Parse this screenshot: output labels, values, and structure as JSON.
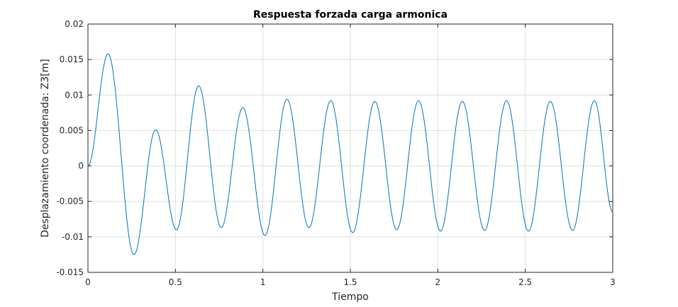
{
  "chart_data": {
    "type": "line",
    "title": "Respuesta forzada carga armonica",
    "xlabel": "Tiempo",
    "ylabel": "Desplazamiento coordenada: Z3[m]",
    "xlim": [
      0,
      3
    ],
    "ylim": [
      -0.015,
      0.02
    ],
    "xticks": [
      0,
      0.5,
      1,
      1.5,
      2,
      2.5,
      3
    ],
    "xtick_labels": [
      "0",
      "0.5",
      "1",
      "1.5",
      "2",
      "2.5",
      "3"
    ],
    "yticks": [
      -0.015,
      -0.01,
      -0.005,
      0,
      0.005,
      0.01,
      0.015,
      0.02
    ],
    "ytick_labels": [
      "-0.015",
      "-0.01",
      "-0.005",
      "0",
      "0.005",
      "0.01",
      "0.015",
      "0.02"
    ],
    "grid": true,
    "series": [
      {
        "color": "#0072bd",
        "extrema": [
          {
            "x": 0.0,
            "y": 0.0
          },
          {
            "x": 0.115,
            "y": 0.0158
          },
          {
            "x": 0.263,
            "y": -0.0125
          },
          {
            "x": 0.387,
            "y": 0.0051
          },
          {
            "x": 0.506,
            "y": -0.009
          },
          {
            "x": 0.633,
            "y": 0.0113
          },
          {
            "x": 0.762,
            "y": -0.0087
          },
          {
            "x": 0.885,
            "y": 0.0082
          },
          {
            "x": 1.012,
            "y": -0.0098
          },
          {
            "x": 1.138,
            "y": 0.0094
          },
          {
            "x": 1.263,
            "y": -0.0087
          },
          {
            "x": 1.388,
            "y": 0.0092
          },
          {
            "x": 1.513,
            "y": -0.0094
          },
          {
            "x": 1.64,
            "y": 0.0091
          },
          {
            "x": 1.765,
            "y": -0.009
          },
          {
            "x": 1.89,
            "y": 0.0092
          },
          {
            "x": 2.015,
            "y": -0.0092
          },
          {
            "x": 2.14,
            "y": 0.0091
          },
          {
            "x": 2.267,
            "y": -0.0091
          },
          {
            "x": 2.393,
            "y": 0.0092
          },
          {
            "x": 2.518,
            "y": -0.0092
          },
          {
            "x": 2.643,
            "y": 0.0091
          },
          {
            "x": 2.77,
            "y": -0.0091
          },
          {
            "x": 2.895,
            "y": 0.0092
          },
          {
            "x": 3.0,
            "y": -0.0065
          }
        ]
      }
    ]
  }
}
